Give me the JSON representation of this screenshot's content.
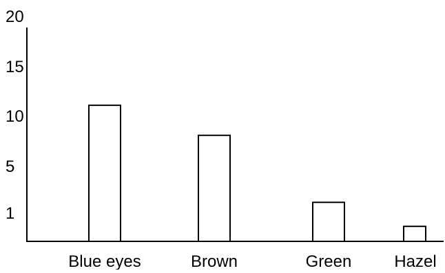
{
  "chart_data": {
    "type": "bar",
    "title": "",
    "xlabel": "",
    "ylabel": "",
    "categories": [
      "Blue eyes",
      "Brown",
      "Green",
      "Hazel"
    ],
    "values": [
      13.6,
      10.6,
      3.9,
      1.5
    ],
    "y_tick_labels": [
      "1",
      "5",
      "10",
      "15",
      "20"
    ],
    "ylim": [
      0,
      20
    ],
    "grid": false,
    "legend": "none",
    "bar_fill": "#ffffff",
    "bar_stroke": "#000000",
    "axis_color": "#000000"
  }
}
